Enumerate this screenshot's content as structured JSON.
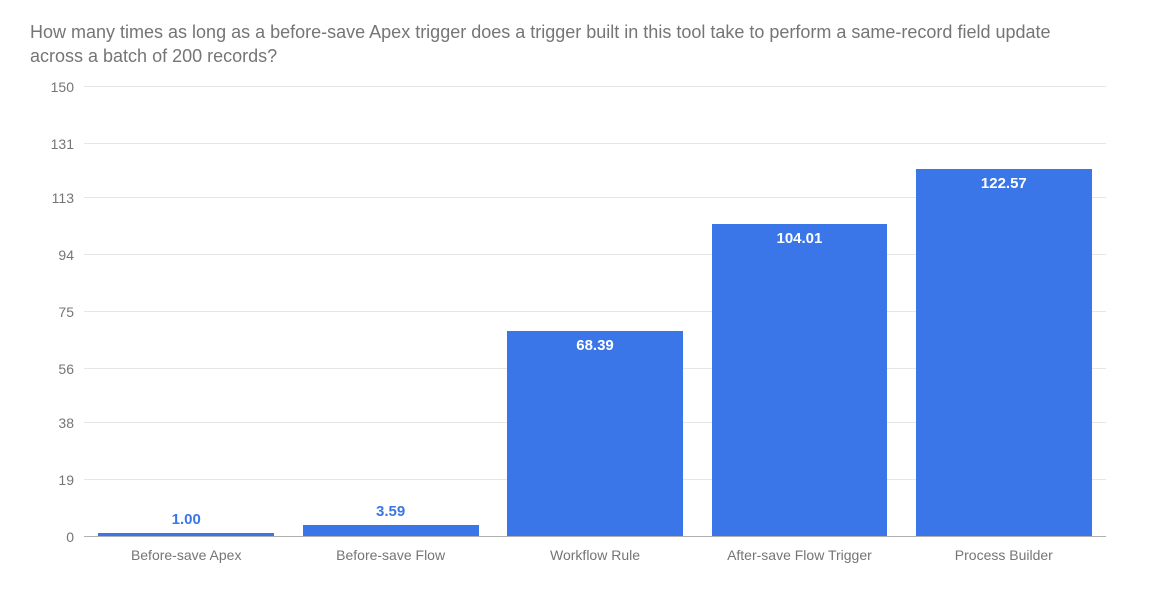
{
  "chart": {
    "type": "bar",
    "title": "How many times as long as a before-save Apex trigger does a trigger built in this tool take to perform a same-record field update across a batch of 200 records?",
    "title_color": "#757575",
    "title_fontsize": 18,
    "categories": [
      "Before-save Apex",
      "Before-save Flow",
      "Workflow Rule",
      "After-save Flow Trigger",
      "Process Builder"
    ],
    "values": [
      1.0,
      3.59,
      68.39,
      104.01,
      122.57
    ],
    "value_labels": [
      "1.00",
      "3.59",
      "68.39",
      "104.01",
      "122.57"
    ],
    "bar_color": "#3a76e8",
    "background_color": "#ffffff",
    "grid_color": "#e6e6e6",
    "axis_color": "#b0b0b0",
    "tick_label_color": "#757575",
    "tick_label_fontsize": 14,
    "value_label_fontsize": 15,
    "value_label_color_inside": "#ffffff",
    "value_label_color_outside": "#3a76e8",
    "ylim": [
      0,
      150
    ],
    "yticks": [
      0,
      19,
      38,
      56,
      75,
      94,
      113,
      131,
      150
    ],
    "bar_width_ratio": 0.86,
    "label_inside_threshold": 30
  }
}
